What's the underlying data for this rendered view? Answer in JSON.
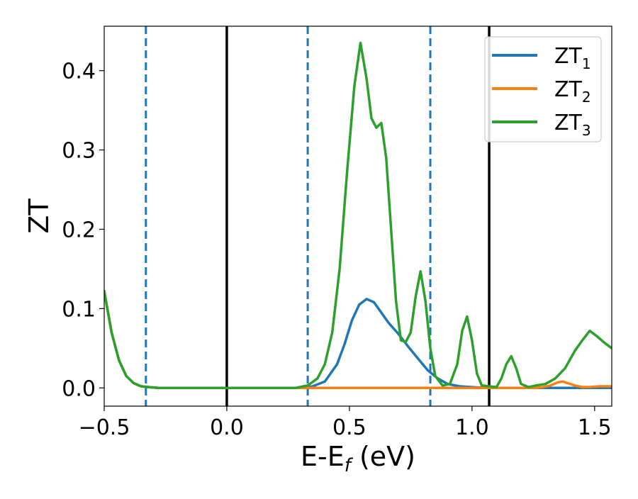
{
  "chart_data": {
    "type": "line",
    "title": "",
    "xlabel": {
      "main": "E-E",
      "sub": "f",
      "suffix": " (eV)"
    },
    "ylabel": "ZT",
    "xlim": [
      -0.5,
      1.57
    ],
    "ylim": [
      -0.023,
      0.456
    ],
    "xticks": [
      -0.5,
      0.0,
      0.5,
      1.0,
      1.5
    ],
    "xtick_labels": [
      "−0.5",
      "0.0",
      "0.5",
      "1.0",
      "1.5"
    ],
    "yticks": [
      0.0,
      0.1,
      0.2,
      0.3,
      0.4
    ],
    "ytick_labels": [
      "0.0",
      "0.1",
      "0.2",
      "0.3",
      "0.4"
    ],
    "grid": false,
    "legend_position": "top-right",
    "vlines": [
      {
        "x": -0.33,
        "style": "dashed",
        "color": "#1f77b4"
      },
      {
        "x": 0.0,
        "style": "solid",
        "color": "#000000"
      },
      {
        "x": 0.33,
        "style": "dashed",
        "color": "#1f77b4"
      },
      {
        "x": 0.83,
        "style": "dashed",
        "color": "#1f77b4"
      },
      {
        "x": 1.07,
        "style": "solid",
        "color": "#000000"
      }
    ],
    "series": [
      {
        "name": "ZT",
        "name_sub": "1",
        "color": "#1f77b4",
        "x": [
          -0.5,
          -0.47,
          -0.44,
          -0.41,
          -0.38,
          -0.35,
          -0.32,
          -0.28,
          -0.2,
          -0.1,
          0.0,
          0.1,
          0.2,
          0.3,
          0.35,
          0.4,
          0.45,
          0.48,
          0.51,
          0.54,
          0.57,
          0.6,
          0.63,
          0.66,
          0.7,
          0.74,
          0.78,
          0.82,
          0.86,
          0.9,
          0.95,
          1.0,
          1.05,
          1.1,
          1.2,
          1.3,
          1.4,
          1.5,
          1.57
        ],
        "y": [
          0.122,
          0.07,
          0.035,
          0.015,
          0.006,
          0.002,
          0.001,
          0.0,
          0.0,
          0.0,
          0.0,
          0.0,
          0.0,
          0.0,
          0.002,
          0.008,
          0.03,
          0.055,
          0.085,
          0.105,
          0.112,
          0.108,
          0.095,
          0.082,
          0.068,
          0.052,
          0.037,
          0.022,
          0.012,
          0.005,
          0.002,
          0.001,
          0.0,
          0.0,
          0.0,
          0.0,
          0.0,
          0.0,
          0.0
        ]
      },
      {
        "name": "ZT",
        "name_sub": "2",
        "color": "#ff7f0e",
        "x": [
          -0.5,
          -0.47,
          -0.44,
          -0.41,
          -0.38,
          -0.35,
          -0.32,
          -0.28,
          0.0,
          1.2,
          1.26,
          1.29,
          1.32,
          1.35,
          1.37,
          1.39,
          1.42,
          1.45,
          1.48,
          1.52,
          1.57
        ],
        "y": [
          0.122,
          0.07,
          0.035,
          0.015,
          0.006,
          0.002,
          0.001,
          0.0,
          0.0,
          0.0,
          0.0,
          0.001,
          0.003,
          0.007,
          0.008,
          0.006,
          0.003,
          0.001,
          0.001,
          0.002,
          0.002
        ]
      },
      {
        "name": "ZT",
        "name_sub": "3",
        "color": "#2ca02c",
        "x": [
          -0.5,
          -0.47,
          -0.44,
          -0.41,
          -0.38,
          -0.35,
          -0.32,
          -0.28,
          -0.2,
          -0.1,
          0.0,
          0.1,
          0.2,
          0.28,
          0.33,
          0.37,
          0.4,
          0.43,
          0.46,
          0.49,
          0.52,
          0.545,
          0.57,
          0.59,
          0.61,
          0.63,
          0.65,
          0.67,
          0.69,
          0.71,
          0.73,
          0.75,
          0.77,
          0.79,
          0.81,
          0.83,
          0.85,
          0.88,
          0.91,
          0.94,
          0.96,
          0.98,
          1.0,
          1.02,
          1.04,
          1.07,
          1.1,
          1.12,
          1.14,
          1.16,
          1.18,
          1.2,
          1.23,
          1.26,
          1.3,
          1.34,
          1.38,
          1.42,
          1.45,
          1.48,
          1.51,
          1.54,
          1.57
        ],
        "y": [
          0.122,
          0.07,
          0.035,
          0.015,
          0.006,
          0.002,
          0.001,
          0.0,
          0.0,
          0.0,
          0.0,
          0.0,
          0.0,
          0.0,
          0.003,
          0.012,
          0.03,
          0.07,
          0.15,
          0.27,
          0.38,
          0.435,
          0.39,
          0.34,
          0.328,
          0.334,
          0.29,
          0.2,
          0.11,
          0.06,
          0.058,
          0.07,
          0.115,
          0.147,
          0.11,
          0.05,
          0.015,
          0.003,
          0.005,
          0.03,
          0.072,
          0.09,
          0.06,
          0.018,
          0.003,
          0.002,
          0.001,
          0.012,
          0.03,
          0.04,
          0.025,
          0.005,
          0.001,
          0.003,
          0.005,
          0.012,
          0.025,
          0.047,
          0.06,
          0.072,
          0.065,
          0.057,
          0.05
        ]
      }
    ]
  }
}
